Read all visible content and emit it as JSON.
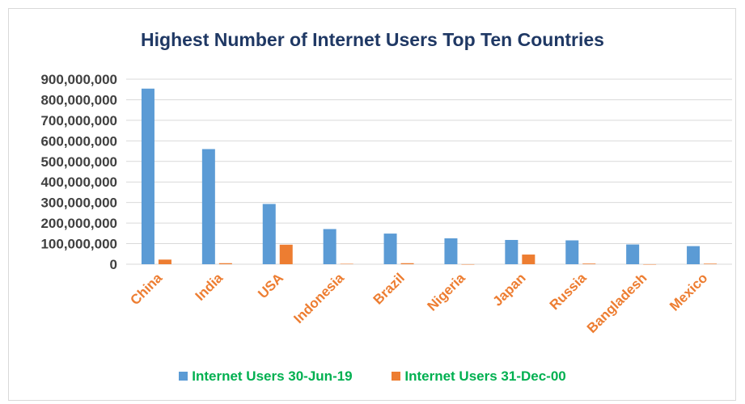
{
  "chart_data": {
    "type": "bar",
    "title": "Highest Number of Internet Users Top Ten Countries",
    "categories": [
      "China",
      "India",
      "USA",
      "Indonesia",
      "Brazil",
      "Nigeria",
      "Japan",
      "Russia",
      "Bangladesh",
      "Mexico"
    ],
    "series": [
      {
        "name": "Internet Users 30-Jun-19",
        "color": "#5b9bd5",
        "values": [
          854000000,
          560000000,
          293000000,
          171000000,
          149000000,
          126000000,
          118000000,
          116000000,
          96000000,
          88000000
        ]
      },
      {
        "name": "Internet Users 31-Dec-00",
        "color": "#ed7d31",
        "values": [
          22500000,
          5000000,
          95000000,
          2000000,
          5000000,
          200000,
          47000000,
          3100000,
          100000,
          2700000
        ]
      }
    ],
    "yticks": [
      "0",
      "100,000,000",
      "200,000,000",
      "300,000,000",
      "400,000,000",
      "500,000,000",
      "600,000,000",
      "700,000,000",
      "800,000,000",
      "900,000,000"
    ],
    "ylim": [
      0,
      900000000
    ],
    "grid": true,
    "legend_position": "bottom",
    "xtick_color": "#ed7d31",
    "legend_text_color": "#00b050",
    "title_color": "#1f3864"
  }
}
